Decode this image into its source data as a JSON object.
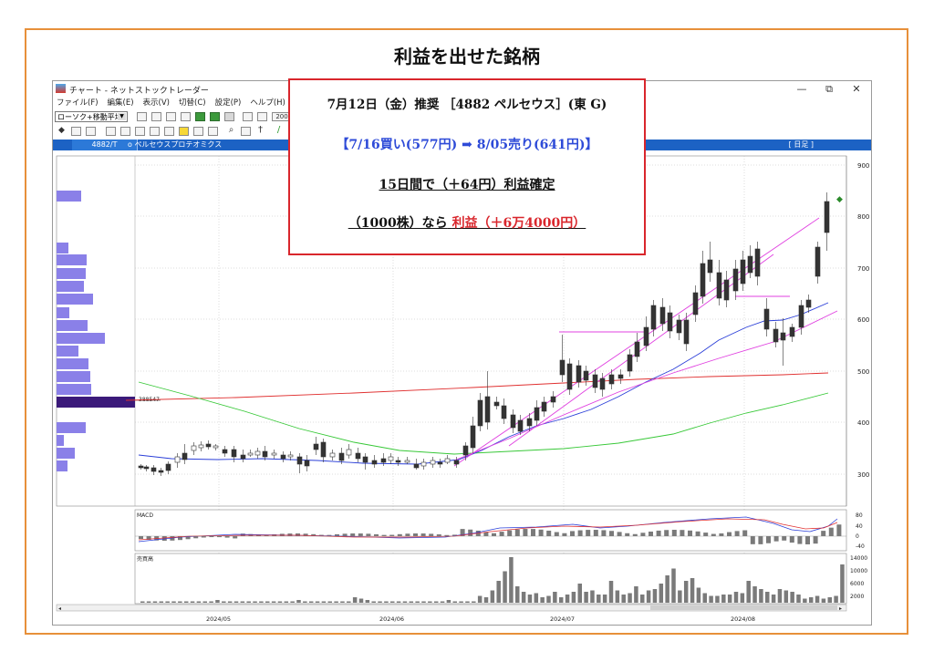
{
  "page_title": "利益を出せた銘柄",
  "window": {
    "title": "チャート - ネットストックトレーダー",
    "minimize": "—",
    "restore": "⧉",
    "close": "✕"
  },
  "menu": [
    "ファイル(F)",
    "編集(E)",
    "表示(V)",
    "切替(C)",
    "設定(P)",
    "ヘルプ(H)"
  ],
  "toolbar": {
    "chart_type_select": "ローソク+移動平均",
    "field_partial": "200"
  },
  "header_bar": {
    "code": "4882/T",
    "name": "o ペルセウスプロテオミクス",
    "period": "[ 日足 ]"
  },
  "callout": {
    "line1": "7月12日（金）推奨 ［4882 ペルセウス］(東 G)",
    "line2": "【7/16買い(577円) ➡ 8/05売り(641円)】",
    "line3": "15日間で（＋64円）利益確定",
    "line4_prefix": "（1000株）なら",
    "line4_profit": "利益（＋6万4000円）"
  },
  "price_axis": {
    "ticks": [
      "900",
      "800",
      "700",
      "600",
      "500",
      "400",
      "300"
    ]
  },
  "volume_profile": {
    "label": "388547"
  },
  "macd_panel": {
    "label": "MACD",
    "ticks": [
      "80",
      "40",
      "0",
      "-40"
    ]
  },
  "volume_panel": {
    "label": "売買高",
    "ticks": [
      "14000",
      "10000",
      "6000",
      "2000"
    ]
  },
  "date_axis": {
    "labels": [
      "2024/05",
      "2024/06",
      "2024/07",
      "2024/08"
    ]
  },
  "colors": {
    "frame": "#e7903a",
    "callout_border": "#d9262c",
    "callout_blue": "#2e4bd8",
    "header_blue": "#1c62c4",
    "profile_bar": "#8a80e8",
    "profile_peak": "#3b1a7a",
    "ma_short": "#2a3ed8",
    "ma_mid": "#e040e0",
    "ma_long": "#37c837",
    "ma_red": "#e03030"
  }
}
